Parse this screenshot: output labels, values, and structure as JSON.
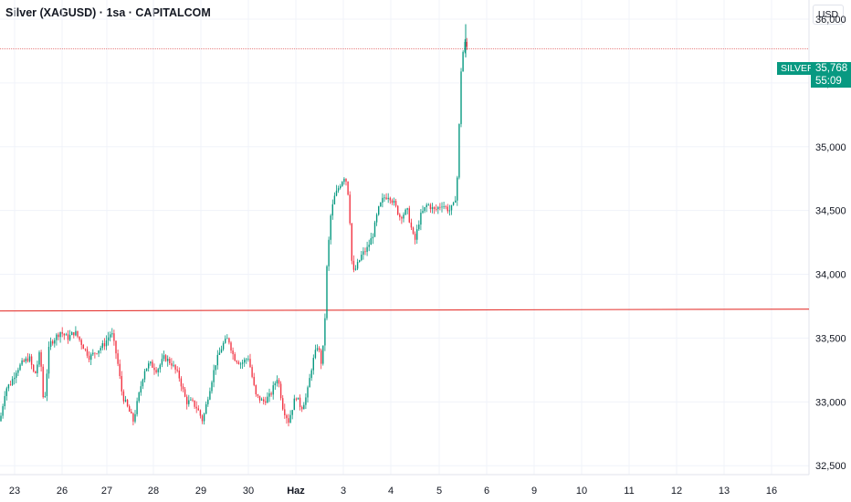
{
  "header": {
    "title": "Silver (XAGUSD) · 1sa · CAPITALCOM",
    "currency": "USD"
  },
  "price_badge": {
    "symbol": "SILVER",
    "price": "35,768",
    "countdown": "55:09"
  },
  "colors": {
    "up": "#089981",
    "down": "#f23645",
    "grid": "#f0f3fa",
    "support_line": "#e53935",
    "price_line": "#e57373"
  },
  "chart_data": {
    "type": "candlestick",
    "y_ticks": [
      "36,000",
      "35,500",
      "35,000",
      "34,500",
      "34,000",
      "33,500",
      "33,000",
      "32,500"
    ],
    "y_tick_values": [
      36.0,
      35.5,
      35.0,
      34.5,
      34.0,
      33.5,
      33.0,
      32.5
    ],
    "ylim": [
      32.43,
      36.15
    ],
    "x_ticks": [
      "23",
      "26",
      "27",
      "28",
      "29",
      "30",
      "Haz",
      "3",
      "4",
      "5",
      "6",
      "9",
      "10",
      "11",
      "12",
      "13",
      "16"
    ],
    "last_price": 35.768,
    "support_level": 33.72,
    "key_points": [
      [
        0,
        32.85
      ],
      [
        6,
        33.1
      ],
      [
        12,
        33.15
      ],
      [
        18,
        33.25
      ],
      [
        24,
        33.3
      ],
      [
        32,
        33.35
      ],
      [
        38,
        33.2
      ],
      [
        44,
        33.4
      ],
      [
        48,
        32.95
      ],
      [
        54,
        33.45
      ],
      [
        60,
        33.5
      ],
      [
        66,
        33.55
      ],
      [
        74,
        33.5
      ],
      [
        82,
        33.55
      ],
      [
        90,
        33.45
      ],
      [
        98,
        33.35
      ],
      [
        106,
        33.4
      ],
      [
        114,
        33.45
      ],
      [
        122,
        33.55
      ],
      [
        128,
        33.35
      ],
      [
        134,
        33.05
      ],
      [
        140,
        32.95
      ],
      [
        146,
        32.85
      ],
      [
        152,
        33.05
      ],
      [
        158,
        33.25
      ],
      [
        164,
        33.3
      ],
      [
        172,
        33.25
      ],
      [
        180,
        33.35
      ],
      [
        188,
        33.3
      ],
      [
        196,
        33.2
      ],
      [
        204,
        33.0
      ],
      [
        210,
        33.0
      ],
      [
        216,
        32.95
      ],
      [
        222,
        32.85
      ],
      [
        228,
        33.05
      ],
      [
        236,
        33.3
      ],
      [
        244,
        33.45
      ],
      [
        250,
        33.5
      ],
      [
        256,
        33.35
      ],
      [
        264,
        33.3
      ],
      [
        272,
        33.35
      ],
      [
        280,
        33.05
      ],
      [
        288,
        33.0
      ],
      [
        296,
        33.05
      ],
      [
        304,
        33.2
      ],
      [
        310,
        32.95
      ],
      [
        316,
        32.85
      ],
      [
        324,
        33.05
      ],
      [
        330,
        32.95
      ],
      [
        336,
        33.05
      ],
      [
        342,
        33.3
      ],
      [
        348,
        33.45
      ],
      [
        352,
        33.3
      ],
      [
        355,
        33.5
      ],
      [
        358,
        34.05
      ],
      [
        362,
        34.45
      ],
      [
        366,
        34.6
      ],
      [
        372,
        34.7
      ],
      [
        378,
        34.78
      ],
      [
        382,
        34.6
      ],
      [
        384,
        34.3
      ],
      [
        386,
        34.0
      ],
      [
        390,
        34.05
      ],
      [
        396,
        34.15
      ],
      [
        402,
        34.2
      ],
      [
        408,
        34.3
      ],
      [
        414,
        34.5
      ],
      [
        420,
        34.6
      ],
      [
        426,
        34.62
      ],
      [
        432,
        34.55
      ],
      [
        438,
        34.45
      ],
      [
        446,
        34.5
      ],
      [
        454,
        34.25
      ],
      [
        460,
        34.45
      ],
      [
        468,
        34.55
      ],
      [
        476,
        34.5
      ],
      [
        484,
        34.55
      ],
      [
        492,
        34.5
      ],
      [
        498,
        34.55
      ],
      [
        502,
        34.85
      ],
      [
        504,
        35.55
      ],
      [
        506,
        35.65
      ],
      [
        508,
        35.82
      ],
      [
        510,
        35.8
      ],
      [
        512,
        35.77
      ]
    ]
  }
}
